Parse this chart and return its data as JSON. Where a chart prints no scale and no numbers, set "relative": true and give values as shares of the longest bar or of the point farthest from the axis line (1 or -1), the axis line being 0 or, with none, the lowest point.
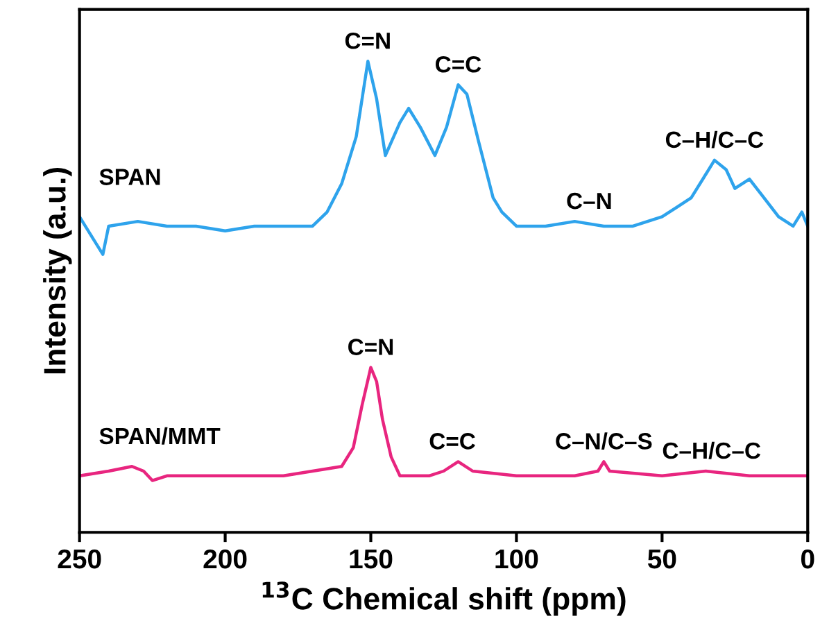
{
  "chart_data": {
    "type": "line",
    "xlabel": "$^{13}$C Chemical shift (ppm)",
    "ylabel": "Intensity (a.u.)",
    "relative": true,
    "xlim": [
      250,
      0
    ],
    "xticks": [
      250,
      200,
      150,
      100,
      50,
      0
    ],
    "tick_labels": "x",
    "legend": false,
    "grid": false,
    "marker": "none",
    "line_style": "solid",
    "series": [
      {
        "name": "SPAN",
        "color": "#2ea3ec",
        "x": [
          250,
          245,
          242,
          240,
          230,
          220,
          210,
          200,
          190,
          180,
          170,
          165,
          160,
          155,
          151,
          148,
          145,
          140,
          137,
          133,
          128,
          124,
          120,
          117,
          113,
          108,
          105,
          100,
          90,
          80,
          70,
          60,
          50,
          45,
          40,
          35,
          32,
          28,
          25,
          20,
          15,
          10,
          5,
          2,
          0
        ],
        "values": [
          0.67,
          0.62,
          0.59,
          0.65,
          0.66,
          0.65,
          0.65,
          0.64,
          0.65,
          0.65,
          0.65,
          0.68,
          0.74,
          0.84,
          1.0,
          0.92,
          0.8,
          0.87,
          0.9,
          0.86,
          0.8,
          0.86,
          0.95,
          0.93,
          0.83,
          0.71,
          0.68,
          0.65,
          0.65,
          0.66,
          0.65,
          0.65,
          0.67,
          0.69,
          0.71,
          0.76,
          0.79,
          0.77,
          0.73,
          0.75,
          0.71,
          0.67,
          0.65,
          0.68,
          0.65
        ]
      },
      {
        "name": "SPAN/MMT",
        "color": "#e8257f",
        "x": [
          250,
          240,
          232,
          228,
          225,
          220,
          200,
          180,
          170,
          160,
          156,
          153,
          150,
          148,
          146,
          143,
          140,
          130,
          125,
          120,
          115,
          100,
          80,
          72,
          70,
          68,
          50,
          35,
          20,
          0
        ],
        "values": [
          0.12,
          0.13,
          0.14,
          0.13,
          0.11,
          0.12,
          0.12,
          0.12,
          0.13,
          0.14,
          0.18,
          0.27,
          0.35,
          0.32,
          0.24,
          0.16,
          0.12,
          0.12,
          0.13,
          0.15,
          0.13,
          0.12,
          0.12,
          0.13,
          0.15,
          0.13,
          0.12,
          0.13,
          0.12,
          0.12
        ]
      }
    ],
    "annotations": [
      {
        "text": "C=N",
        "x": 151,
        "y": 1.0
      },
      {
        "text": "C=C",
        "x": 120,
        "y": 0.95
      },
      {
        "text": "C–N",
        "x": 75,
        "y": 0.66
      },
      {
        "text": "C–H/C–C",
        "x": 32,
        "y": 0.79
      },
      {
        "text": "C=N",
        "x": 150,
        "y": 0.35
      },
      {
        "text": "C=C",
        "x": 122,
        "y": 0.15
      },
      {
        "text": "C–N/C–S",
        "x": 70,
        "y": 0.15
      },
      {
        "text": "C–H/C–C",
        "x": 33,
        "y": 0.13
      }
    ]
  }
}
